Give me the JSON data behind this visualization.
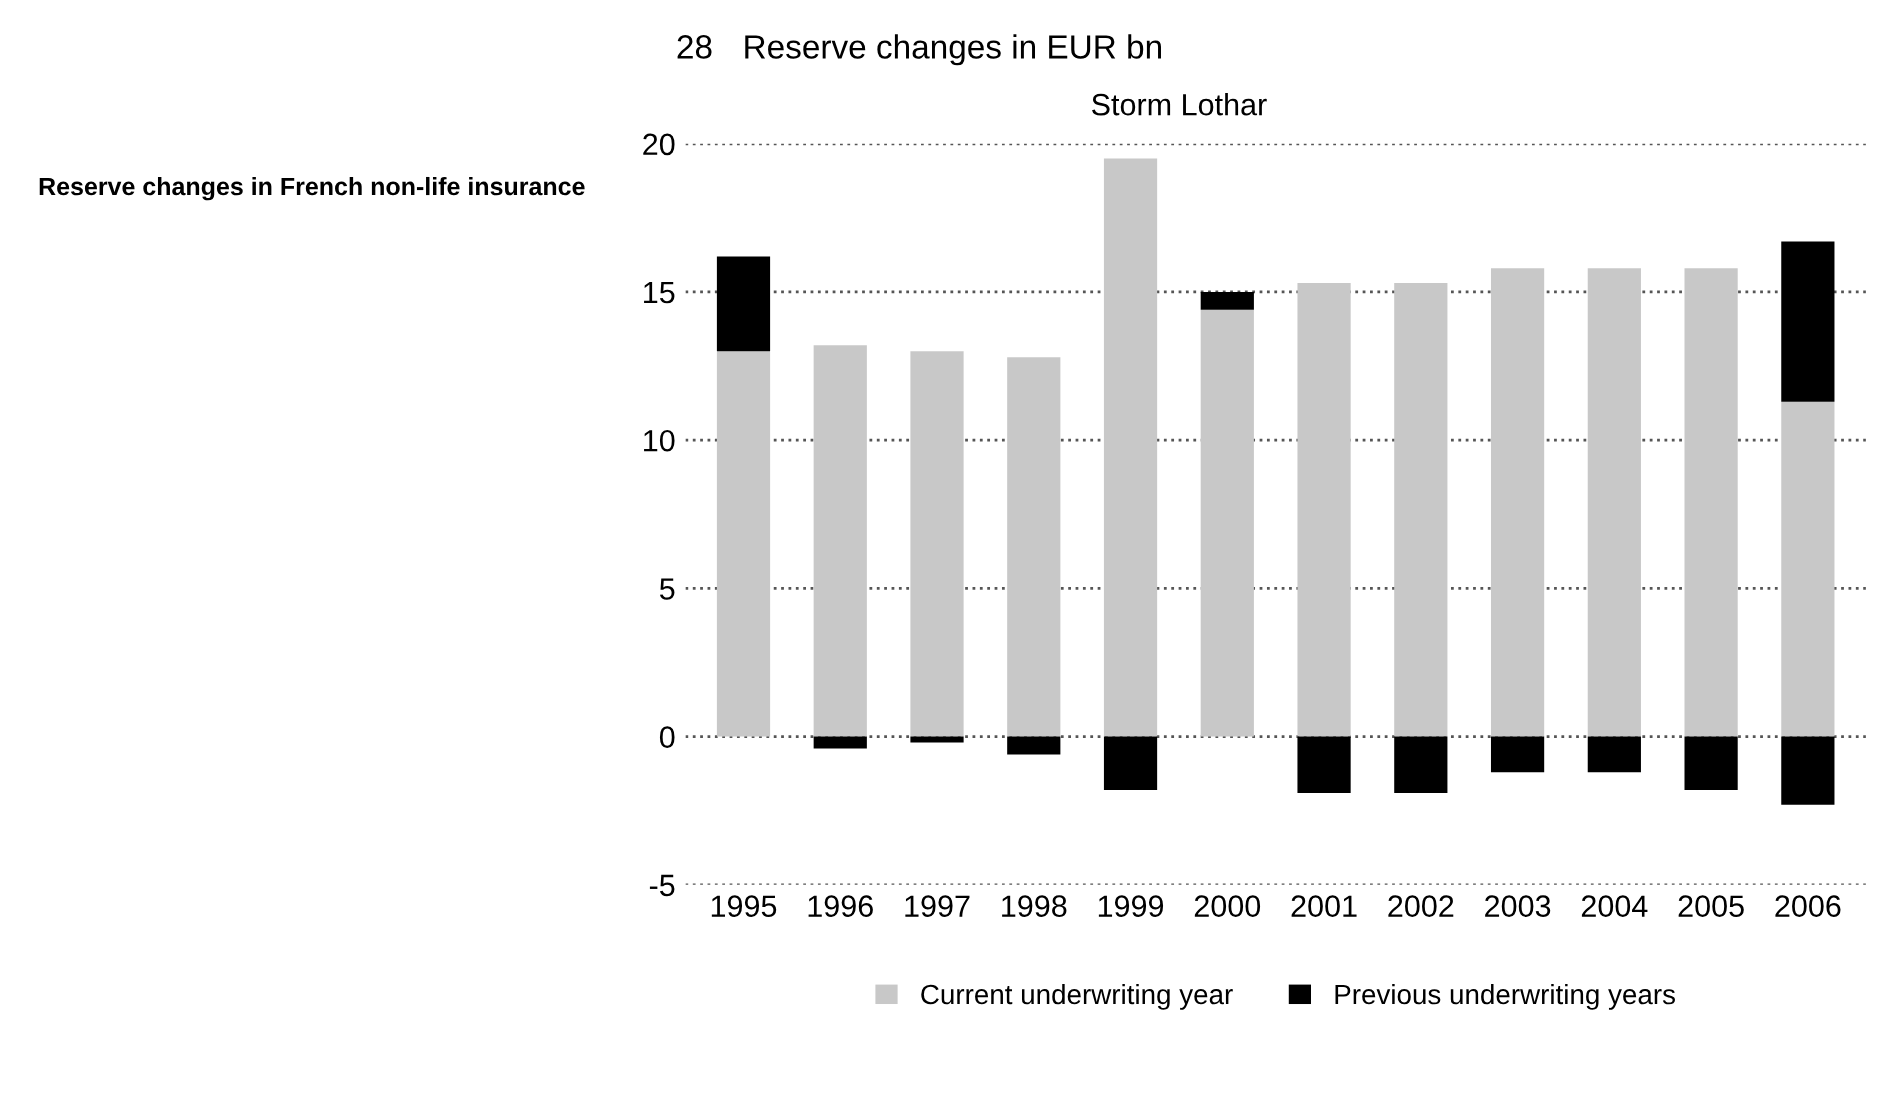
{
  "chart_data": {
    "type": "bar",
    "title": "Reserve changes in EUR bn",
    "subtitle": "Reserve changes in French non-life insurance",
    "annotations": [
      "28",
      "Storm Lothar"
    ],
    "categories": [
      "1995",
      "1996",
      "1997",
      "1998",
      "1999",
      "2000",
      "2001",
      "2002",
      "2003",
      "2004",
      "2005",
      "2006"
    ],
    "stacked": true,
    "series": [
      {
        "name": "Current underwriting year",
        "color": "#c8c8c8",
        "values": [
          13.0,
          13.2,
          13.0,
          12.8,
          19.5,
          14.4,
          15.3,
          15.3,
          15.8,
          15.8,
          15.8,
          11.3
        ]
      },
      {
        "name": "Previous underwriting years",
        "color": "#000000",
        "values": [
          3.2,
          -0.4,
          -0.2,
          -0.6,
          -1.8,
          0.6,
          -1.9,
          -1.9,
          -1.2,
          -1.2,
          -1.8,
          -2.3
        ]
      },
      {
        "color": "#000000",
        "values": [
          null,
          null,
          null,
          null,
          null,
          null,
          null,
          null,
          null,
          null,
          null,
          5.4
        ]
      }
    ],
    "ylim": [
      -5,
      20
    ],
    "yticks": [
      -5,
      0,
      5,
      10,
      15,
      20
    ],
    "grid": "y",
    "legend": "bottom"
  }
}
